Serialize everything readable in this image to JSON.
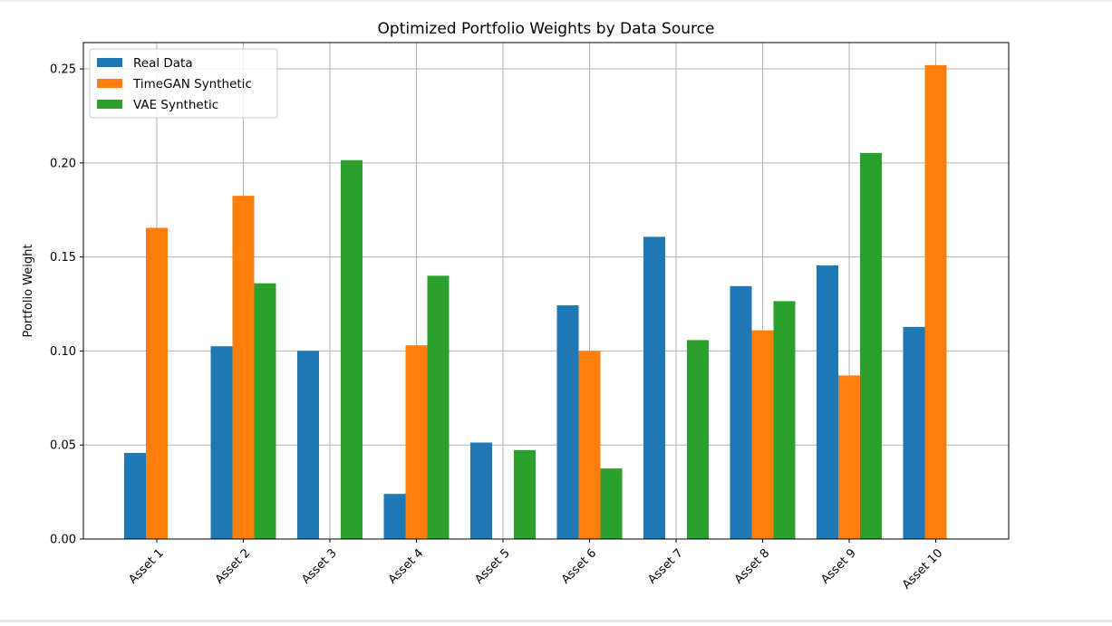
{
  "chart_data": {
    "type": "bar",
    "title": "Optimized Portfolio Weights by Data Source",
    "xlabel": "",
    "ylabel": "Portfolio Weight",
    "categories": [
      "Asset 1",
      "Asset 2",
      "Asset 3",
      "Asset 4",
      "Asset 5",
      "Asset 6",
      "Asset 7",
      "Asset 8",
      "Asset 9",
      "Asset 10"
    ],
    "series": [
      {
        "name": "Real Data",
        "color": "#1f77b4",
        "values": [
          0.0458,
          0.1025,
          0.1,
          0.024,
          0.0513,
          0.1243,
          0.1607,
          0.1345,
          0.1455,
          0.1128
        ]
      },
      {
        "name": "TimeGAN Synthetic",
        "color": "#ff7f0e",
        "values": [
          0.1655,
          0.1825,
          0.0,
          0.103,
          0.0,
          0.1,
          0.0,
          0.111,
          0.087,
          0.252
        ]
      },
      {
        "name": "VAE Synthetic",
        "color": "#2ca02c",
        "values": [
          0.0,
          0.136,
          0.2015,
          0.14,
          0.0473,
          0.0375,
          0.1058,
          0.1265,
          0.2053,
          0.0
        ]
      }
    ],
    "ylim": [
      0,
      0.264
    ],
    "yticks": [
      "0.00",
      "0.05",
      "0.10",
      "0.15",
      "0.20",
      "0.25"
    ],
    "grid": true,
    "legend_position": "top-left"
  }
}
